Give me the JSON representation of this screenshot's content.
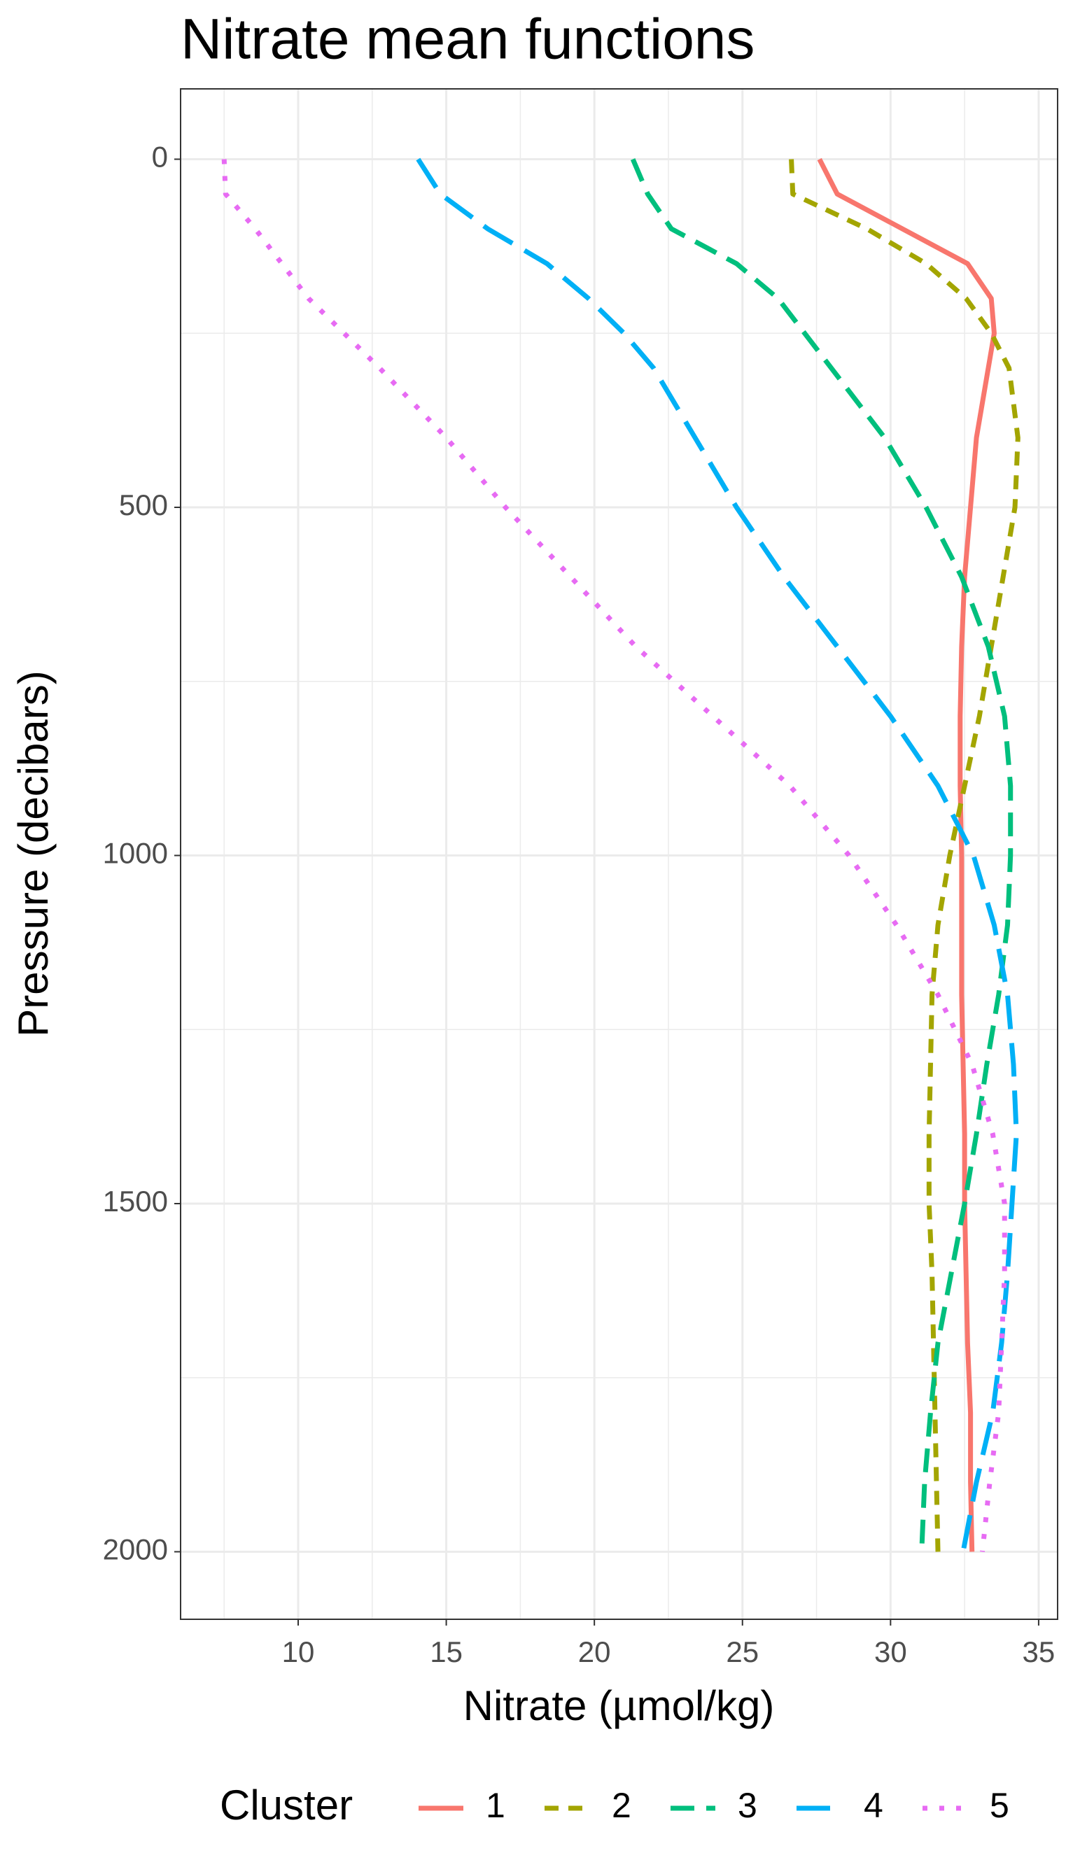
{
  "chart_data": {
    "type": "line",
    "title": "Nitrate mean functions",
    "x_label": "Nitrate (µmol/kg)",
    "y_label": "Pressure (decibars)",
    "legend_title": "Cluster",
    "legend": "bottom",
    "grid": true,
    "minor_grid": true,
    "y": [
      0,
      50,
      100,
      150,
      200,
      250,
      300,
      400,
      500,
      600,
      700,
      800,
      900,
      1000,
      1100,
      1200,
      1300,
      1400,
      1500,
      1600,
      1700,
      1800,
      1900,
      2000
    ],
    "xlim": [
      6.03,
      35.64
    ],
    "xticks": [
      10,
      15,
      20,
      25,
      30,
      35
    ],
    "ylim": [
      2097,
      -101
    ],
    "yticks": [
      0,
      500,
      1000,
      1500,
      2000
    ],
    "series": [
      {
        "name": "1",
        "color": "#F8766D",
        "linetype": "solid",
        "values": [
          27.6,
          28.2,
          30.4,
          32.6,
          33.4,
          33.5,
          33.3,
          32.9,
          32.7,
          32.5,
          32.4,
          32.35,
          32.35,
          32.4,
          32.4,
          32.4,
          32.45,
          32.5,
          32.5,
          32.55,
          32.6,
          32.7,
          32.7,
          32.75
        ]
      },
      {
        "name": "2",
        "color": "#A3A500",
        "linetype": "dashed",
        "values": [
          26.65,
          26.7,
          29.2,
          31.2,
          32.55,
          33.4,
          34.0,
          34.3,
          34.2,
          33.8,
          33.4,
          33.0,
          32.5,
          32.0,
          31.6,
          31.4,
          31.35,
          31.3,
          31.3,
          31.4,
          31.45,
          31.5,
          31.55,
          31.6
        ]
      },
      {
        "name": "3",
        "color": "#00BF7D",
        "linetype": "longdash",
        "values": [
          21.3,
          21.8,
          22.6,
          24.8,
          26.2,
          27.1,
          28.0,
          29.8,
          31.2,
          32.4,
          33.3,
          33.85,
          34.05,
          34.05,
          33.95,
          33.65,
          33.25,
          32.9,
          32.5,
          32.05,
          31.6,
          31.35,
          31.15,
          31.05
        ]
      },
      {
        "name": "4",
        "color": "#00B0F6",
        "linetype": "verylongdash",
        "values": [
          14.05,
          14.8,
          16.4,
          18.4,
          19.8,
          21.0,
          22.0,
          23.4,
          24.8,
          26.4,
          28.2,
          30.0,
          31.6,
          32.8,
          33.5,
          33.95,
          34.15,
          34.25,
          34.1,
          33.95,
          33.75,
          33.45,
          32.9,
          32.45
        ]
      },
      {
        "name": "5",
        "color": "#E76BF3",
        "linetype": "dotted",
        "values": [
          7.5,
          7.55,
          8.55,
          9.45,
          10.35,
          11.55,
          12.75,
          15.0,
          17.0,
          19.2,
          21.4,
          24.0,
          26.6,
          28.6,
          30.2,
          31.6,
          32.75,
          33.45,
          33.85,
          33.85,
          33.75,
          33.65,
          33.35,
          33.1
        ]
      }
    ]
  }
}
